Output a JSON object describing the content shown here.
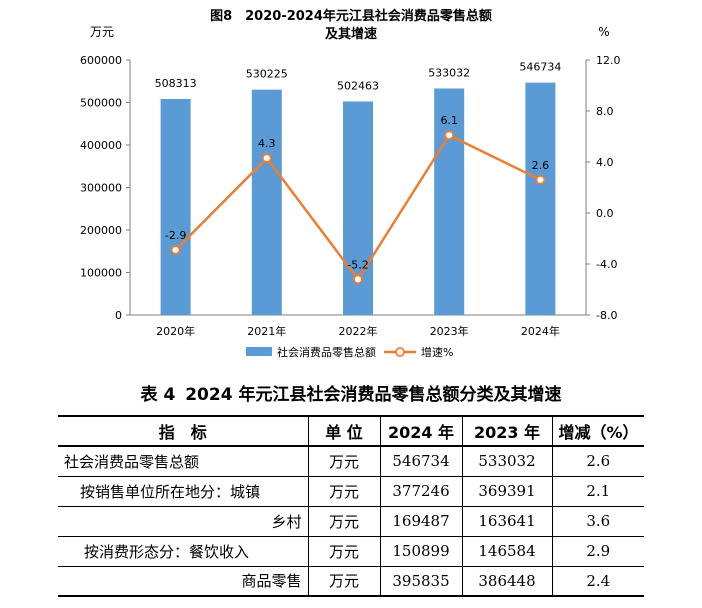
{
  "chart_data": {
    "type": "bar+line",
    "title_line1": "图8　2020-2024年元江县社会消费品零售总额",
    "title_line2": "及其增速",
    "left_axis_unit": "万元",
    "right_axis_unit": "%",
    "categories": [
      "2020年",
      "2021年",
      "2022年",
      "2023年",
      "2024年"
    ],
    "series": [
      {
        "name": "社会消费品零售总额",
        "type": "bar",
        "axis": "left",
        "color": "#5b9bd5",
        "values": [
          508313,
          530225,
          502463,
          533032,
          546734
        ]
      },
      {
        "name": "增速%",
        "type": "line",
        "axis": "right",
        "color": "#ed7d31",
        "values": [
          -2.9,
          4.3,
          -5.2,
          6.1,
          2.6
        ]
      }
    ],
    "left_ylim": [
      0,
      600000
    ],
    "left_ticks": [
      "0",
      "100000",
      "200000",
      "300000",
      "400000",
      "500000",
      "600000"
    ],
    "right_ylim": [
      -8.0,
      12.0
    ],
    "right_ticks": [
      "-8.0",
      "-4.0",
      "0.0",
      "4.0",
      "8.0",
      "12.0"
    ],
    "bar_labels": [
      "508313",
      "530225",
      "502463",
      "533032",
      "546734"
    ],
    "line_labels": [
      "-2.9",
      "4.3",
      "-5.2",
      "6.1",
      "2.6"
    ],
    "legend_position": "bottom"
  },
  "table": {
    "title_prefix": "表 4",
    "title": "2024 年元江县社会消费品零售总额分类及其增速",
    "headers": [
      "指　标",
      "单 位",
      "2024 年",
      "2023 年",
      "增减（%）"
    ],
    "rows": [
      {
        "label": "社会消费品零售总额",
        "unit": "万元",
        "y2024": "546734",
        "y2023": "533032",
        "change": "2.6"
      },
      {
        "label": "按销售单位所在地分：城镇",
        "unit": "万元",
        "y2024": "377246",
        "y2023": "369391",
        "change": "2.1"
      },
      {
        "label": "乡村",
        "unit": "万元",
        "y2024": "169487",
        "y2023": "163641",
        "change": "3.6"
      },
      {
        "label": "按消费形态分：餐饮收入",
        "unit": "万元",
        "y2024": "150899",
        "y2023": "146584",
        "change": "2.9"
      },
      {
        "label": "商品零售",
        "unit": "万元",
        "y2024": "395835",
        "y2023": "386448",
        "change": "2.4"
      }
    ]
  }
}
